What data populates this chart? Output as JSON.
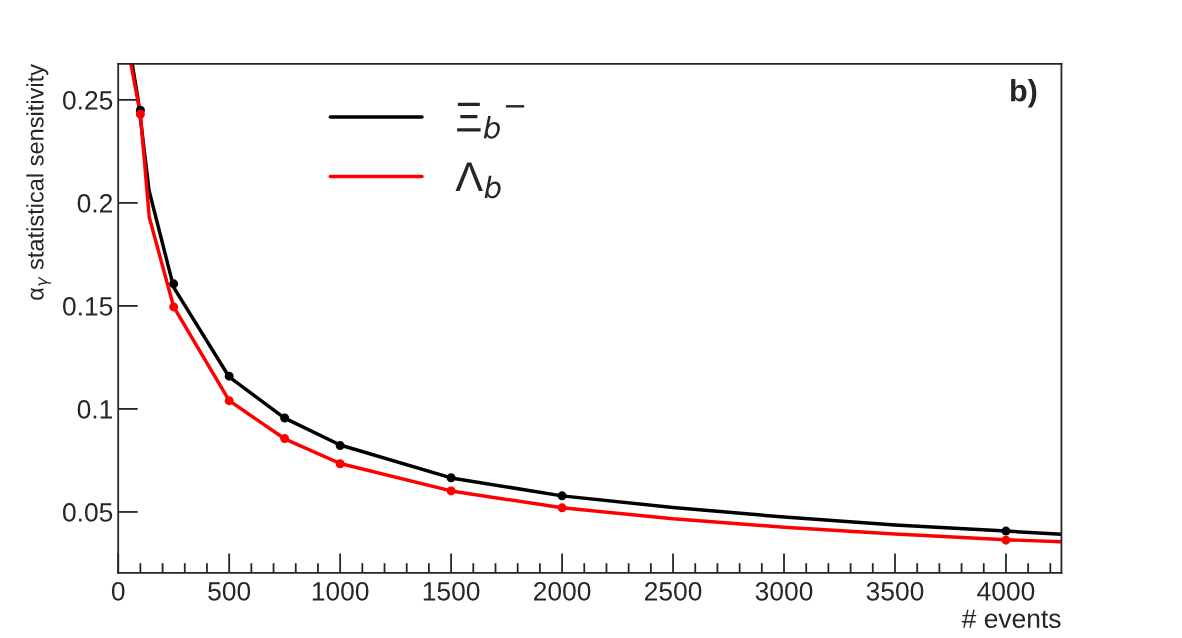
{
  "chart_data": {
    "type": "line",
    "xlabel": "# events",
    "ylabel": "α$_{γ}$ statistical sensitivity",
    "annotations": [
      "b)"
    ],
    "xlim": [
      0,
      4250
    ],
    "xticks": [
      0,
      500,
      1000,
      1500,
      2000,
      2500,
      3000,
      3500,
      4000
    ],
    "ylim": [
      0.0204,
      0.2675
    ],
    "yticks": [
      0.05,
      0.1,
      0.15,
      0.2,
      0.25
    ],
    "grid": false,
    "legend": "top",
    "series": [
      {
        "name": "Ξ$_{b}$$^{−}$",
        "color": "#000000",
        "marker": "none",
        "x": [
          63,
          90,
          139,
          250,
          500,
          750,
          1000,
          1500,
          2000,
          2500,
          3000,
          3500,
          4000,
          4250
        ],
        "values": [
          0.2675,
          0.25,
          0.206,
          0.159,
          0.1155,
          0.0955,
          0.0825,
          0.0665,
          0.0578,
          0.0522,
          0.0475,
          0.0437,
          0.0407,
          0.0392
        ]
      },
      {
        "name": "Λ$_{b}$",
        "color": "#ff0000",
        "marker": "none",
        "x": [
          57,
          100,
          140,
          250,
          500,
          750,
          1000,
          1500,
          2000,
          2500,
          3000,
          3500,
          4000,
          4250
        ],
        "values": [
          0.2675,
          0.243,
          0.193,
          0.1495,
          0.104,
          0.0855,
          0.0735,
          0.0602,
          0.052,
          0.0467,
          0.0426,
          0.0393,
          0.0365,
          0.0355
        ]
      },
      {
        "type": "scatter",
        "color": "#000000",
        "marker": "circle",
        "x": [
          100,
          250,
          500,
          750,
          1000,
          1500,
          2000,
          4000
        ],
        "values": [
          0.245,
          0.1607,
          0.1159,
          0.0956,
          0.0822,
          0.0666,
          0.0578,
          0.0407
        ]
      },
      {
        "type": "scatter",
        "color": "#ff0000",
        "marker": "circle",
        "x": [
          100,
          250,
          500,
          750,
          1000,
          1500,
          2000,
          4000
        ],
        "values": [
          0.243,
          0.1495,
          0.104,
          0.0856,
          0.0734,
          0.0602,
          0.052,
          0.0363
        ]
      }
    ]
  }
}
